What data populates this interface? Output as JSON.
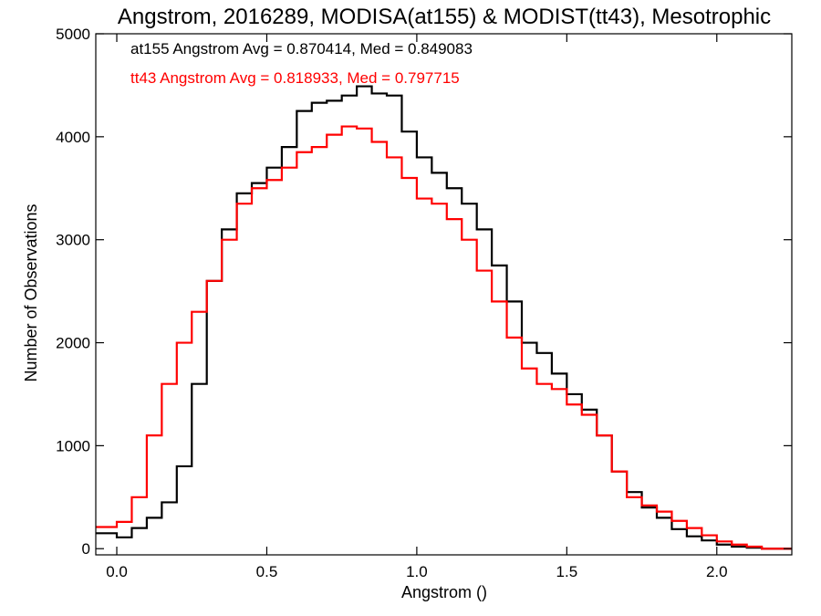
{
  "chart_data": {
    "type": "line",
    "step": true,
    "title": "Angstrom, 2016289, MODISA(at155) & MODIST(tt43), Mesotrophic",
    "xlabel": "Angstrom ()",
    "ylabel": "Number of Observations",
    "xlim": [
      -0.07,
      2.25
    ],
    "ylim": [
      -60,
      5000
    ],
    "xticks": [
      0.0,
      0.5,
      1.0,
      1.5,
      2.0
    ],
    "xtick_labels": [
      "0.0",
      "0.5",
      "1.0",
      "1.5",
      "2.0"
    ],
    "yticks": [
      0,
      1000,
      2000,
      3000,
      4000,
      5000
    ],
    "ytick_labels": [
      "0",
      "1000",
      "2000",
      "3000",
      "4000",
      "5000"
    ],
    "grid": false,
    "legend": "none",
    "annotations": [
      {
        "text": "at155 Angstrom Avg = 0.870414, Med = 0.849083",
        "color": "#000000"
      },
      {
        "text": "tt43 Angstrom Avg = 0.818933, Med = 0.797715",
        "color": "#ff0000"
      }
    ],
    "series": [
      {
        "color": "#000000",
        "x": [
          -0.07,
          0.0,
          0.05,
          0.1,
          0.15,
          0.2,
          0.25,
          0.3,
          0.35,
          0.4,
          0.45,
          0.5,
          0.55,
          0.6,
          0.65,
          0.7,
          0.75,
          0.8,
          0.85,
          0.9,
          0.95,
          1.0,
          1.05,
          1.1,
          1.15,
          1.2,
          1.25,
          1.3,
          1.35,
          1.4,
          1.45,
          1.5,
          1.55,
          1.6,
          1.65,
          1.7,
          1.75,
          1.8,
          1.85,
          1.9,
          1.95,
          2.0,
          2.05,
          2.1,
          2.15,
          2.2,
          2.25
        ],
        "y": [
          150,
          110,
          200,
          300,
          450,
          800,
          1600,
          2600,
          3100,
          3450,
          3550,
          3700,
          3900,
          4250,
          4330,
          4350,
          4400,
          4490,
          4420,
          4400,
          4050,
          3800,
          3650,
          3500,
          3350,
          3100,
          2750,
          2400,
          2000,
          1900,
          1700,
          1500,
          1350,
          1100,
          750,
          550,
          400,
          300,
          190,
          120,
          80,
          40,
          20,
          10,
          0,
          0,
          0
        ]
      },
      {
        "color": "#ff0000",
        "x": [
          -0.07,
          0.0,
          0.05,
          0.1,
          0.15,
          0.2,
          0.25,
          0.3,
          0.35,
          0.4,
          0.45,
          0.5,
          0.55,
          0.6,
          0.65,
          0.7,
          0.75,
          0.8,
          0.85,
          0.9,
          0.95,
          1.0,
          1.05,
          1.1,
          1.15,
          1.2,
          1.25,
          1.3,
          1.35,
          1.4,
          1.45,
          1.5,
          1.55,
          1.6,
          1.65,
          1.7,
          1.75,
          1.8,
          1.85,
          1.9,
          1.95,
          2.0,
          2.05,
          2.1,
          2.15,
          2.2,
          2.25
        ],
        "y": [
          210,
          260,
          500,
          1100,
          1600,
          2000,
          2300,
          2600,
          3000,
          3350,
          3500,
          3580,
          3700,
          3850,
          3900,
          4020,
          4100,
          4080,
          3950,
          3800,
          3600,
          3400,
          3350,
          3200,
          3000,
          2700,
          2400,
          2050,
          1750,
          1600,
          1550,
          1400,
          1300,
          1100,
          750,
          500,
          420,
          360,
          270,
          200,
          130,
          70,
          40,
          20,
          0,
          0,
          0
        ]
      }
    ]
  }
}
